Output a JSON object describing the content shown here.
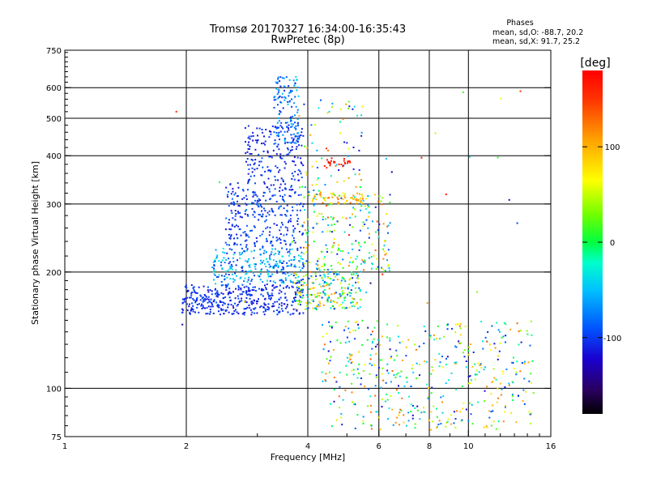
{
  "chart_data": {
    "type": "scatter",
    "title": "Tromsø 20170327 16:34:00-16:35:43",
    "subtitle": "RwPretec (8p)",
    "stats": {
      "heading": "Phases",
      "o_line": "mean, sd,O: -88.7, 20.2",
      "x_line": "mean, sd,X:  91.7, 25.2"
    },
    "xlabel": "Frequency [MHz]",
    "ylabel": "Stationary phase Virtual Height [km]",
    "x_scale": "log",
    "y_scale": "log",
    "xlim": [
      1,
      16
    ],
    "ylim": [
      75,
      750
    ],
    "x_ticks": [
      1,
      2,
      4,
      6,
      8,
      10,
      16
    ],
    "y_ticks": [
      75,
      100,
      200,
      300,
      400,
      500,
      600,
      750
    ],
    "x_grid": [
      2,
      4,
      6,
      8,
      10
    ],
    "y_grid": [
      100,
      200,
      300,
      400,
      500,
      600
    ],
    "grid": true,
    "colorbar": {
      "label": "[deg]",
      "range": [
        -180,
        180
      ],
      "ticks": [
        100,
        0,
        -100
      ]
    },
    "clusters": [
      {
        "freq": [
          1.95,
          3.9
        ],
        "height": [
          155,
          185
        ],
        "phase": [
          -120,
          -90
        ],
        "count": 380
      },
      {
        "freq": [
          2.3,
          3.9
        ],
        "height": [
          185,
          230
        ],
        "phase": [
          -110,
          -20
        ],
        "count": 260
      },
      {
        "freq": [
          2.5,
          3.9
        ],
        "height": [
          230,
          340
        ],
        "phase": [
          -120,
          -80
        ],
        "count": 280
      },
      {
        "freq": [
          2.8,
          3.9
        ],
        "height": [
          340,
          480
        ],
        "phase": [
          -120,
          -90
        ],
        "count": 170
      },
      {
        "freq": [
          3.3,
          3.8
        ],
        "height": [
          430,
          640
        ],
        "phase": [
          -110,
          -40
        ],
        "count": 130
      },
      {
        "freq": [
          3.7,
          5.4
        ],
        "height": [
          160,
          200
        ],
        "phase": [
          -110,
          120
        ],
        "count": 220
      },
      {
        "freq": [
          3.9,
          6.4
        ],
        "height": [
          200,
          320
        ],
        "phase": [
          -120,
          140
        ],
        "count": 220
      },
      {
        "freq": [
          4.1,
          5.6
        ],
        "height": [
          300,
          320
        ],
        "phase": [
          60,
          130
        ],
        "count": 60
      },
      {
        "freq": [
          4.4,
          5.1
        ],
        "height": [
          370,
          395
        ],
        "phase": [
          150,
          175
        ],
        "count": 25
      },
      {
        "freq": [
          3.8,
          5.5
        ],
        "height": [
          320,
          560
        ],
        "phase": [
          -120,
          120
        ],
        "count": 70
      },
      {
        "freq": [
          4.3,
          14.5
        ],
        "height": [
          100,
          150
        ],
        "phase": [
          -130,
          140
        ],
        "count": 300
      },
      {
        "freq": [
          4.5,
          14.5
        ],
        "height": [
          78,
          100
        ],
        "phase": [
          -130,
          140
        ],
        "count": 160
      },
      {
        "freq": [
          1.8,
          13.5
        ],
        "height": [
          140,
          600
        ],
        "phase": [
          -150,
          170
        ],
        "count": 30
      }
    ]
  }
}
